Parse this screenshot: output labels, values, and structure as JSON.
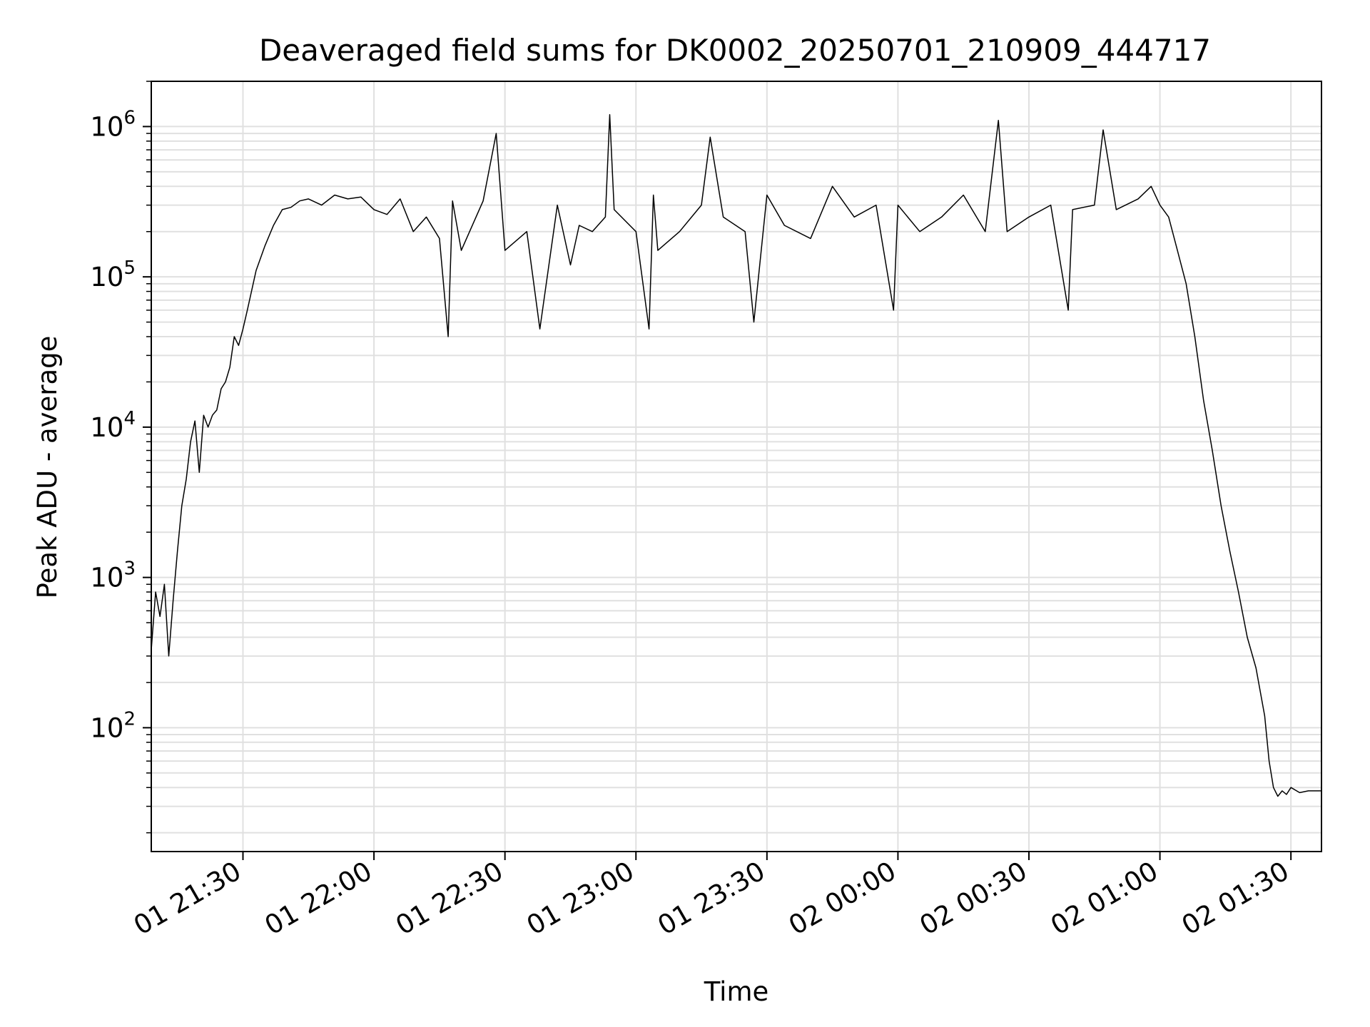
{
  "chart_data": {
    "type": "line",
    "title": "Deaveraged field sums for DK0002_20250701_210909_444717",
    "xlabel": "Time",
    "ylabel": "Peak ADU - average",
    "yscale": "log",
    "ylim": [
      15,
      2000000
    ],
    "xlim": [
      "2025-07-01 21:09",
      "2025-07-02 01:37"
    ],
    "grid": true,
    "line_color": "#000000",
    "grid_color": "#e0e0e0",
    "x_ticks": [
      {
        "t": "2025-07-01 21:30",
        "label": "01 21:30"
      },
      {
        "t": "2025-07-01 22:00",
        "label": "01 22:00"
      },
      {
        "t": "2025-07-01 22:30",
        "label": "01 22:30"
      },
      {
        "t": "2025-07-01 23:00",
        "label": "01 23:00"
      },
      {
        "t": "2025-07-01 23:30",
        "label": "01 23:30"
      },
      {
        "t": "2025-07-02 00:00",
        "label": "02 00:00"
      },
      {
        "t": "2025-07-02 00:30",
        "label": "02 00:30"
      },
      {
        "t": "2025-07-02 01:00",
        "label": "02 01:00"
      },
      {
        "t": "2025-07-02 01:30",
        "label": "02 01:30"
      }
    ],
    "y_ticks": [
      {
        "value": 100,
        "base": "10",
        "exp": "2"
      },
      {
        "value": 1000,
        "base": "10",
        "exp": "3"
      },
      {
        "value": 10000,
        "base": "10",
        "exp": "4"
      },
      {
        "value": 100000,
        "base": "10",
        "exp": "5"
      },
      {
        "value": 1000000,
        "base": "10",
        "exp": "6"
      }
    ],
    "series": [
      {
        "x": [
          "2025-07-01 21:09",
          "2025-07-01 21:10",
          "2025-07-01 21:11",
          "2025-07-01 21:12",
          "2025-07-01 21:13",
          "2025-07-01 21:14",
          "2025-07-01 21:15",
          "2025-07-01 21:16",
          "2025-07-01 21:17",
          "2025-07-01 21:18",
          "2025-07-01 21:19",
          "2025-07-01 21:20",
          "2025-07-01 21:21",
          "2025-07-01 21:22",
          "2025-07-01 21:23",
          "2025-07-01 21:24",
          "2025-07-01 21:25",
          "2025-07-01 21:26",
          "2025-07-01 21:27",
          "2025-07-01 21:28",
          "2025-07-01 21:29",
          "2025-07-01 21:30",
          "2025-07-01 21:31",
          "2025-07-01 21:33",
          "2025-07-01 21:35",
          "2025-07-01 21:37",
          "2025-07-01 21:39",
          "2025-07-01 21:41",
          "2025-07-01 21:43",
          "2025-07-01 21:45",
          "2025-07-01 21:48",
          "2025-07-01 21:51",
          "2025-07-01 21:54",
          "2025-07-01 21:57",
          "2025-07-01 22:00",
          "2025-07-01 22:03",
          "2025-07-01 22:06",
          "2025-07-01 22:09",
          "2025-07-01 22:12",
          "2025-07-01 22:15",
          "2025-07-01 22:17",
          "2025-07-01 22:18",
          "2025-07-01 22:20",
          "2025-07-01 22:25",
          "2025-07-01 22:28",
          "2025-07-01 22:30",
          "2025-07-01 22:35",
          "2025-07-01 22:38",
          "2025-07-01 22:42",
          "2025-07-01 22:45",
          "2025-07-01 22:47",
          "2025-07-01 22:50",
          "2025-07-01 22:53",
          "2025-07-01 22:54",
          "2025-07-01 22:55",
          "2025-07-01 23:00",
          "2025-07-01 23:03",
          "2025-07-01 23:04",
          "2025-07-01 23:05",
          "2025-07-01 23:10",
          "2025-07-01 23:15",
          "2025-07-01 23:17",
          "2025-07-01 23:20",
          "2025-07-01 23:25",
          "2025-07-01 23:27",
          "2025-07-01 23:30",
          "2025-07-01 23:34",
          "2025-07-01 23:40",
          "2025-07-01 23:45",
          "2025-07-01 23:50",
          "2025-07-01 23:55",
          "2025-07-01 23:59",
          "2025-07-02 00:00",
          "2025-07-02 00:05",
          "2025-07-02 00:10",
          "2025-07-02 00:15",
          "2025-07-02 00:20",
          "2025-07-02 00:23",
          "2025-07-02 00:25",
          "2025-07-02 00:30",
          "2025-07-02 00:35",
          "2025-07-02 00:39",
          "2025-07-02 00:40",
          "2025-07-02 00:45",
          "2025-07-02 00:47",
          "2025-07-02 00:50",
          "2025-07-02 00:55",
          "2025-07-02 00:58",
          "2025-07-02 01:00",
          "2025-07-02 01:02",
          "2025-07-02 01:04",
          "2025-07-02 01:06",
          "2025-07-02 01:08",
          "2025-07-02 01:10",
          "2025-07-02 01:12",
          "2025-07-02 01:14",
          "2025-07-02 01:16",
          "2025-07-02 01:18",
          "2025-07-02 01:20",
          "2025-07-02 01:22",
          "2025-07-02 01:24",
          "2025-07-02 01:25",
          "2025-07-02 01:26",
          "2025-07-02 01:27",
          "2025-07-02 01:28",
          "2025-07-02 01:29",
          "2025-07-02 01:30",
          "2025-07-02 01:32",
          "2025-07-02 01:34",
          "2025-07-02 01:36",
          "2025-07-02 01:37"
        ],
        "y": [
          330,
          800,
          550,
          900,
          300,
          700,
          1500,
          3000,
          4500,
          8000,
          11000,
          5000,
          12000,
          10000,
          12000,
          13000,
          18000,
          20000,
          25000,
          40000,
          35000,
          45000,
          60000,
          110000,
          160000,
          220000,
          280000,
          290000,
          320000,
          330000,
          300000,
          350000,
          330000,
          340000,
          280000,
          260000,
          330000,
          200000,
          250000,
          180000,
          40000,
          320000,
          150000,
          320000,
          900000,
          150000,
          200000,
          45000,
          300000,
          120000,
          220000,
          200000,
          250000,
          1200000,
          280000,
          200000,
          45000,
          350000,
          150000,
          200000,
          300000,
          850000,
          250000,
          200000,
          50000,
          350000,
          220000,
          180000,
          400000,
          250000,
          300000,
          60000,
          300000,
          200000,
          250000,
          350000,
          200000,
          1100000,
          200000,
          250000,
          300000,
          60000,
          280000,
          300000,
          950000,
          280000,
          330000,
          400000,
          300000,
          250000,
          150000,
          90000,
          40000,
          15000,
          7000,
          3000,
          1500,
          800,
          400,
          250,
          120,
          60,
          40,
          35,
          38,
          36,
          40,
          37,
          38,
          38,
          38
        ]
      }
    ]
  }
}
